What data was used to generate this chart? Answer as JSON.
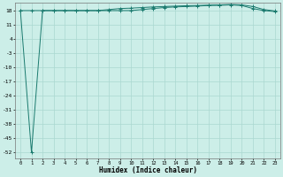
{
  "xlabel": "Humidex (Indice chaleur)",
  "bg_color": "#cceee8",
  "grid_color": "#aad8d0",
  "line_color": "#1a7a6e",
  "x_values": [
    0,
    1,
    2,
    3,
    4,
    5,
    6,
    7,
    8,
    9,
    10,
    11,
    12,
    13,
    14,
    15,
    16,
    17,
    18,
    19,
    20,
    21,
    22,
    23
  ],
  "y_line1": [
    18,
    -52,
    18,
    18,
    18,
    18,
    18,
    18,
    18,
    18,
    18,
    18.5,
    19,
    19.5,
    19.8,
    20.0,
    20.2,
    20.5,
    20.6,
    20.8,
    20.5,
    19.0,
    18,
    17.5
  ],
  "y_line2": [
    18,
    18,
    18,
    18,
    18,
    18,
    18,
    18,
    18.5,
    19.0,
    19.2,
    19.5,
    19.8,
    20.0,
    20.2,
    20.4,
    20.5,
    20.7,
    20.8,
    21.0,
    20.8,
    20.0,
    18.5,
    17.8
  ],
  "ylim": [
    -55,
    22
  ],
  "xlim": [
    -0.5,
    23.5
  ],
  "yticks": [
    18,
    11,
    4,
    -3,
    -10,
    -17,
    -24,
    -31,
    -38,
    -45,
    -52
  ],
  "xticks": [
    0,
    1,
    2,
    3,
    4,
    5,
    6,
    7,
    8,
    9,
    10,
    11,
    12,
    13,
    14,
    15,
    16,
    17,
    18,
    19,
    20,
    21,
    22,
    23
  ]
}
